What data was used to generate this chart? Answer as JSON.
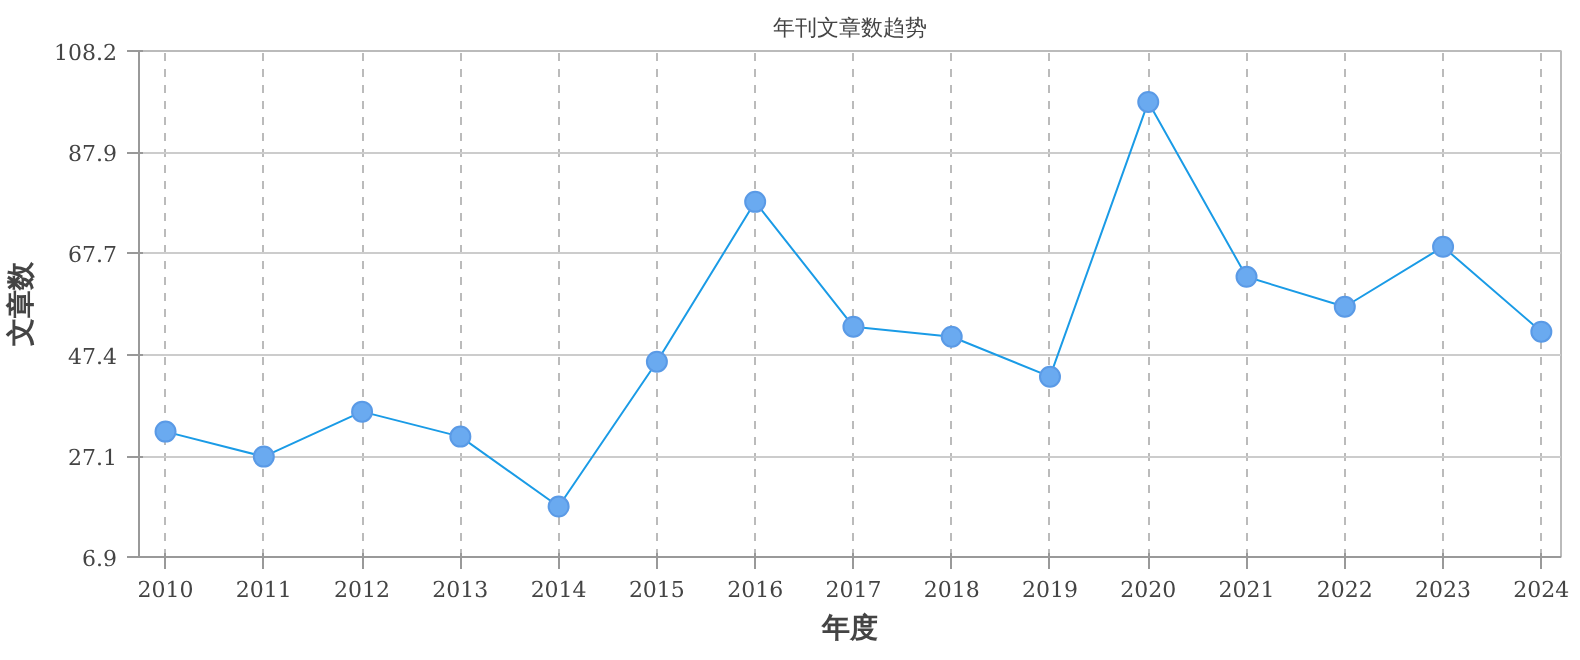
{
  "chart_data": {
    "type": "line",
    "title": "年刊文章数趋势",
    "xlabel": "年度",
    "ylabel": "文章数",
    "categories": [
      "2010",
      "2011",
      "2012",
      "2013",
      "2014",
      "2015",
      "2016",
      "2017",
      "2018",
      "2019",
      "2020",
      "2021",
      "2022",
      "2023",
      "2024"
    ],
    "series": [
      {
        "color": "#1a9be6",
        "values": [
          32,
          27,
          36,
          31,
          17,
          46,
          78,
          53,
          51,
          43,
          98,
          63,
          57,
          69,
          52
        ]
      }
    ],
    "ylim": [
      6.9,
      108.2
    ],
    "yticks": [
      6.9,
      27.1,
      47.4,
      67.7,
      87.9,
      108.2
    ],
    "grid": true,
    "marker": "circle",
    "line_style": "solid"
  }
}
